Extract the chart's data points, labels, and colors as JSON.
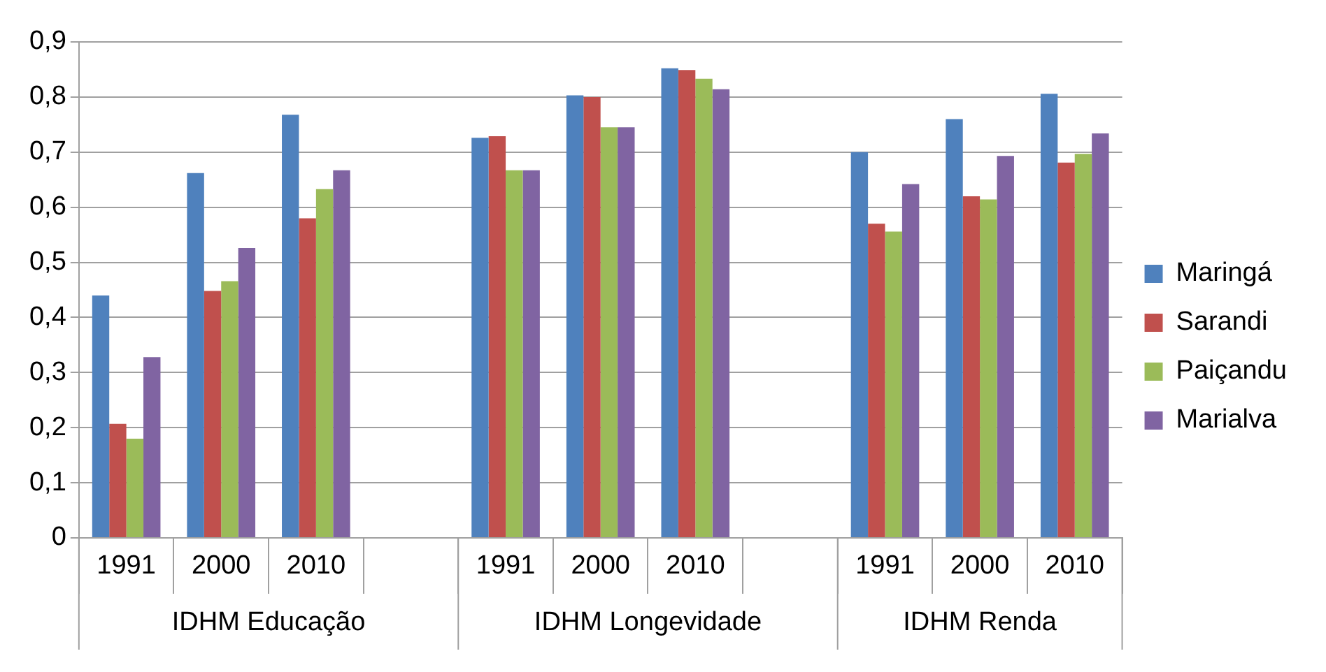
{
  "chart_data": {
    "type": "bar",
    "categories": [
      "1991",
      "2000",
      "2010",
      null,
      "1991",
      "2000",
      "2010",
      null,
      "1991",
      "2000",
      "2010"
    ],
    "series": [
      {
        "name": "Maringá",
        "color": "#4f81bd",
        "values": [
          0.44,
          0.662,
          0.768,
          null,
          0.726,
          0.803,
          0.852,
          null,
          0.7,
          0.76,
          0.806
        ]
      },
      {
        "name": "Sarandi",
        "color": "#c0504d",
        "values": [
          0.207,
          0.448,
          0.58,
          null,
          0.729,
          0.8,
          0.849,
          null,
          0.57,
          0.62,
          0.681
        ]
      },
      {
        "name": "Paiçandu",
        "color": "#9bbb59",
        "values": [
          0.18,
          0.466,
          0.633,
          null,
          0.667,
          0.745,
          0.833,
          null,
          0.556,
          0.614,
          0.697
        ]
      },
      {
        "name": "Marialva",
        "color": "#8064a2",
        "values": [
          0.328,
          0.526,
          0.667,
          null,
          0.667,
          0.745,
          0.814,
          null,
          0.642,
          0.693,
          0.734
        ]
      }
    ],
    "ylim": [
      0,
      0.9
    ],
    "yticks": [
      0,
      {
        "value": 0.1,
        "label": "0,1"
      },
      {
        "value": 0.2,
        "label": "0,2"
      },
      {
        "value": 0.3,
        "label": "0,3"
      },
      {
        "value": 0.4,
        "label": "0,4"
      },
      {
        "value": 0.5,
        "label": "0,5"
      },
      {
        "value": 0.6,
        "label": "0,6"
      },
      {
        "value": 0.7,
        "label": "0,7"
      },
      {
        "value": 0.8,
        "label": "0,8"
      },
      {
        "value": 0.9,
        "label": "0,9"
      }
    ],
    "annotations": [
      "IDHM Educação",
      "IDHM Longevidade",
      "IDHM Renda"
    ],
    "grid": "y",
    "legend": "right"
  }
}
